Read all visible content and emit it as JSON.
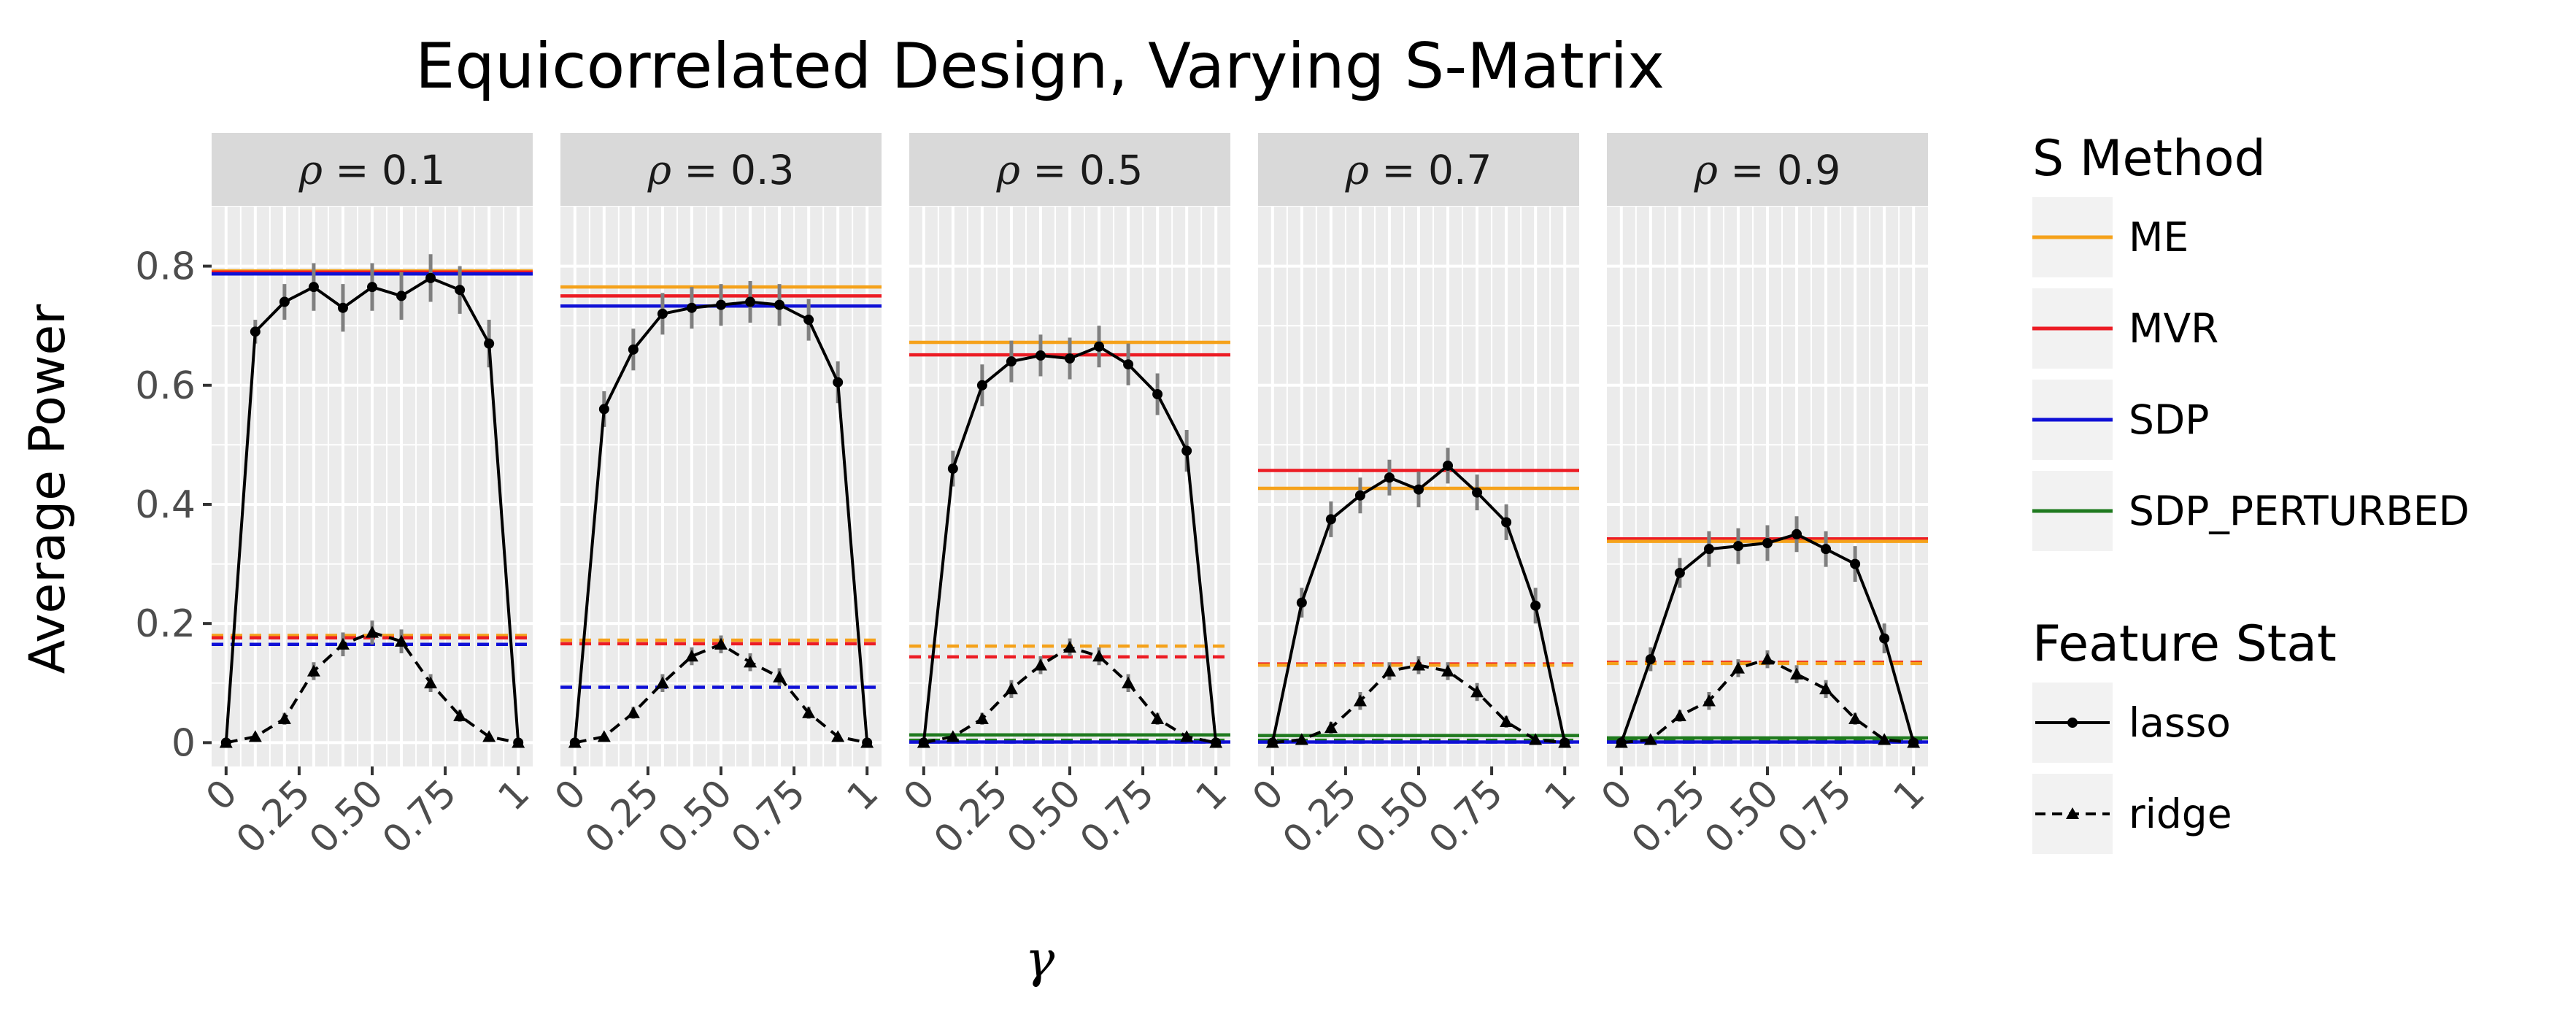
{
  "chart_data": {
    "type": "line",
    "title": "Equicorrelated Design, Varying S-Matrix",
    "xlabel": "γ",
    "ylabel": "Average Power",
    "xlim": [
      0,
      1
    ],
    "ylim": [
      -0.04,
      0.9
    ],
    "x_ticks": [
      0,
      0.25,
      0.5,
      0.75,
      1
    ],
    "x_tick_labels": [
      "0",
      "0.25",
      "0.50",
      "0.75",
      "1"
    ],
    "y_ticks": [
      0,
      0.2,
      0.4,
      0.6,
      0.8
    ],
    "y_tick_labels": [
      "0",
      "0.2",
      "0.4",
      "0.6",
      "0.8"
    ],
    "x": [
      0,
      0.1,
      0.2,
      0.3,
      0.4,
      0.5,
      0.6,
      0.7,
      0.8,
      0.9,
      1.0
    ],
    "method_colors": {
      "ME": "#f5a21b",
      "MVR": "#ec1c24",
      "SDP": "#0f10d6",
      "SDP_PERTURBED": "#1f7a1f"
    },
    "panels": [
      {
        "strip": "ρ = 0.1",
        "lasso": [
          0,
          0.69,
          0.74,
          0.765,
          0.73,
          0.765,
          0.75,
          0.78,
          0.76,
          0.67,
          0
        ],
        "lasso_err": [
          0,
          0.02,
          0.03,
          0.04,
          0.04,
          0.04,
          0.04,
          0.04,
          0.04,
          0.04,
          0
        ],
        "ridge": [
          0,
          0.01,
          0.04,
          0.12,
          0.165,
          0.185,
          0.17,
          0.1,
          0.045,
          0.01,
          0
        ],
        "ridge_err": [
          0,
          0.005,
          0.01,
          0.015,
          0.02,
          0.02,
          0.02,
          0.015,
          0.01,
          0.005,
          0
        ],
        "hlines": [
          {
            "method": "ME",
            "stat": "lasso",
            "y": 0.792
          },
          {
            "method": "MVR",
            "stat": "lasso",
            "y": 0.79
          },
          {
            "method": "SDP",
            "stat": "lasso",
            "y": 0.787
          },
          {
            "method": "ME",
            "stat": "ridge",
            "y": 0.18
          },
          {
            "method": "MVR",
            "stat": "ridge",
            "y": 0.176
          },
          {
            "method": "SDP",
            "stat": "ridge",
            "y": 0.165
          }
        ]
      },
      {
        "strip": "ρ = 0.3",
        "lasso": [
          0,
          0.56,
          0.66,
          0.72,
          0.73,
          0.735,
          0.74,
          0.735,
          0.71,
          0.605,
          0
        ],
        "lasso_err": [
          0,
          0.03,
          0.035,
          0.035,
          0.035,
          0.035,
          0.035,
          0.035,
          0.035,
          0.035,
          0
        ],
        "ridge": [
          0,
          0.01,
          0.05,
          0.1,
          0.145,
          0.165,
          0.135,
          0.11,
          0.05,
          0.01,
          0
        ],
        "ridge_err": [
          0,
          0.005,
          0.01,
          0.015,
          0.015,
          0.015,
          0.015,
          0.015,
          0.01,
          0.005,
          0
        ],
        "hlines": [
          {
            "method": "ME",
            "stat": "lasso",
            "y": 0.765
          },
          {
            "method": "MVR",
            "stat": "lasso",
            "y": 0.75
          },
          {
            "method": "SDP",
            "stat": "lasso",
            "y": 0.733
          },
          {
            "method": "ME",
            "stat": "ridge",
            "y": 0.172
          },
          {
            "method": "MVR",
            "stat": "ridge",
            "y": 0.166
          },
          {
            "method": "SDP",
            "stat": "ridge",
            "y": 0.093
          }
        ]
      },
      {
        "strip": "ρ = 0.5",
        "lasso": [
          0,
          0.46,
          0.6,
          0.64,
          0.65,
          0.645,
          0.665,
          0.635,
          0.585,
          0.49,
          0
        ],
        "lasso_err": [
          0,
          0.03,
          0.035,
          0.035,
          0.035,
          0.035,
          0.035,
          0.035,
          0.035,
          0.035,
          0
        ],
        "ridge": [
          0,
          0.01,
          0.04,
          0.09,
          0.13,
          0.16,
          0.145,
          0.1,
          0.04,
          0.01,
          0
        ],
        "ridge_err": [
          0,
          0.005,
          0.01,
          0.015,
          0.015,
          0.015,
          0.015,
          0.015,
          0.01,
          0.005,
          0
        ],
        "hlines": [
          {
            "method": "ME",
            "stat": "lasso",
            "y": 0.672
          },
          {
            "method": "MVR",
            "stat": "lasso",
            "y": 0.651
          },
          {
            "method": "ME",
            "stat": "ridge",
            "y": 0.162
          },
          {
            "method": "MVR",
            "stat": "ridge",
            "y": 0.144
          },
          {
            "method": "SDP_PERTURBED",
            "stat": "lasso",
            "y": 0.013
          },
          {
            "method": "SDP",
            "stat": "lasso",
            "y": 0.001
          },
          {
            "method": "SDP_PERTURBED",
            "stat": "ridge",
            "y": 0.004
          },
          {
            "method": "SDP",
            "stat": "ridge",
            "y": 0.001
          }
        ]
      },
      {
        "strip": "ρ = 0.7",
        "lasso": [
          0,
          0.235,
          0.375,
          0.415,
          0.445,
          0.425,
          0.465,
          0.42,
          0.37,
          0.23,
          0
        ],
        "lasso_err": [
          0,
          0.025,
          0.03,
          0.03,
          0.03,
          0.03,
          0.03,
          0.03,
          0.03,
          0.03,
          0
        ],
        "ridge": [
          0,
          0.005,
          0.025,
          0.07,
          0.12,
          0.13,
          0.12,
          0.085,
          0.035,
          0.005,
          0
        ],
        "ridge_err": [
          0,
          0.005,
          0.01,
          0.015,
          0.015,
          0.015,
          0.015,
          0.015,
          0.01,
          0.005,
          0
        ],
        "hlines": [
          {
            "method": "MVR",
            "stat": "lasso",
            "y": 0.457
          },
          {
            "method": "ME",
            "stat": "lasso",
            "y": 0.427
          },
          {
            "method": "MVR",
            "stat": "ridge",
            "y": 0.132
          },
          {
            "method": "ME",
            "stat": "ridge",
            "y": 0.13
          },
          {
            "method": "SDP_PERTURBED",
            "stat": "lasso",
            "y": 0.012
          },
          {
            "method": "SDP",
            "stat": "lasso",
            "y": 0.001
          },
          {
            "method": "SDP_PERTURBED",
            "stat": "ridge",
            "y": 0.004
          },
          {
            "method": "SDP",
            "stat": "ridge",
            "y": 0.001
          }
        ]
      },
      {
        "strip": "ρ = 0.9",
        "lasso": [
          0,
          0.14,
          0.285,
          0.325,
          0.33,
          0.335,
          0.35,
          0.325,
          0.3,
          0.175,
          0
        ],
        "lasso_err": [
          0,
          0.02,
          0.025,
          0.03,
          0.03,
          0.03,
          0.03,
          0.03,
          0.03,
          0.025,
          0
        ],
        "ridge": [
          0,
          0.005,
          0.045,
          0.07,
          0.125,
          0.14,
          0.115,
          0.09,
          0.04,
          0.005,
          0
        ],
        "ridge_err": [
          0,
          0.005,
          0.01,
          0.015,
          0.015,
          0.015,
          0.015,
          0.015,
          0.01,
          0.005,
          0
        ],
        "hlines": [
          {
            "method": "MVR",
            "stat": "lasso",
            "y": 0.342
          },
          {
            "method": "ME",
            "stat": "lasso",
            "y": 0.338
          },
          {
            "method": "MVR",
            "stat": "ridge",
            "y": 0.135
          },
          {
            "method": "ME",
            "stat": "ridge",
            "y": 0.133
          },
          {
            "method": "SDP_PERTURBED",
            "stat": "lasso",
            "y": 0.008
          },
          {
            "method": "SDP",
            "stat": "lasso",
            "y": 0.001
          },
          {
            "method": "SDP_PERTURBED",
            "stat": "ridge",
            "y": 0.004
          },
          {
            "method": "SDP",
            "stat": "ridge",
            "y": 0.001
          }
        ]
      }
    ],
    "legend": {
      "placement": "right",
      "method_title": "S Method",
      "methods": [
        "ME",
        "MVR",
        "SDP",
        "SDP_PERTURBED"
      ],
      "stat_title": "Feature Stat",
      "stats": [
        "lasso",
        "ridge"
      ]
    }
  }
}
